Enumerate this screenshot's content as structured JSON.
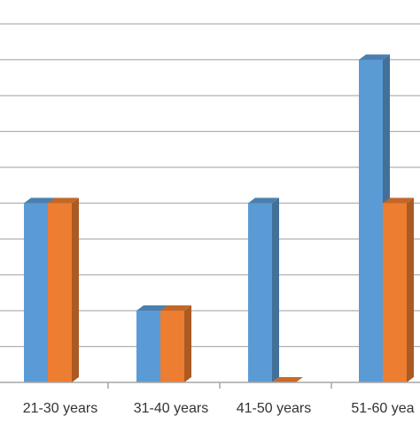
{
  "chart_data": {
    "type": "bar",
    "title": "",
    "xlabel": "",
    "ylabel": "",
    "categories": [
      "21-30 years",
      "31-40 years",
      "41-50 years",
      "51-60 yea"
    ],
    "series": [
      {
        "values": [
          5,
          2,
          5,
          9
        ],
        "color": "#5B9BD5"
      },
      {
        "values": [
          5,
          2,
          0,
          5
        ],
        "color": "#ED7D31"
      }
    ],
    "ylim": [
      0,
      10
    ],
    "grid": true,
    "legend": "none",
    "style": "3d-clustered-column"
  }
}
